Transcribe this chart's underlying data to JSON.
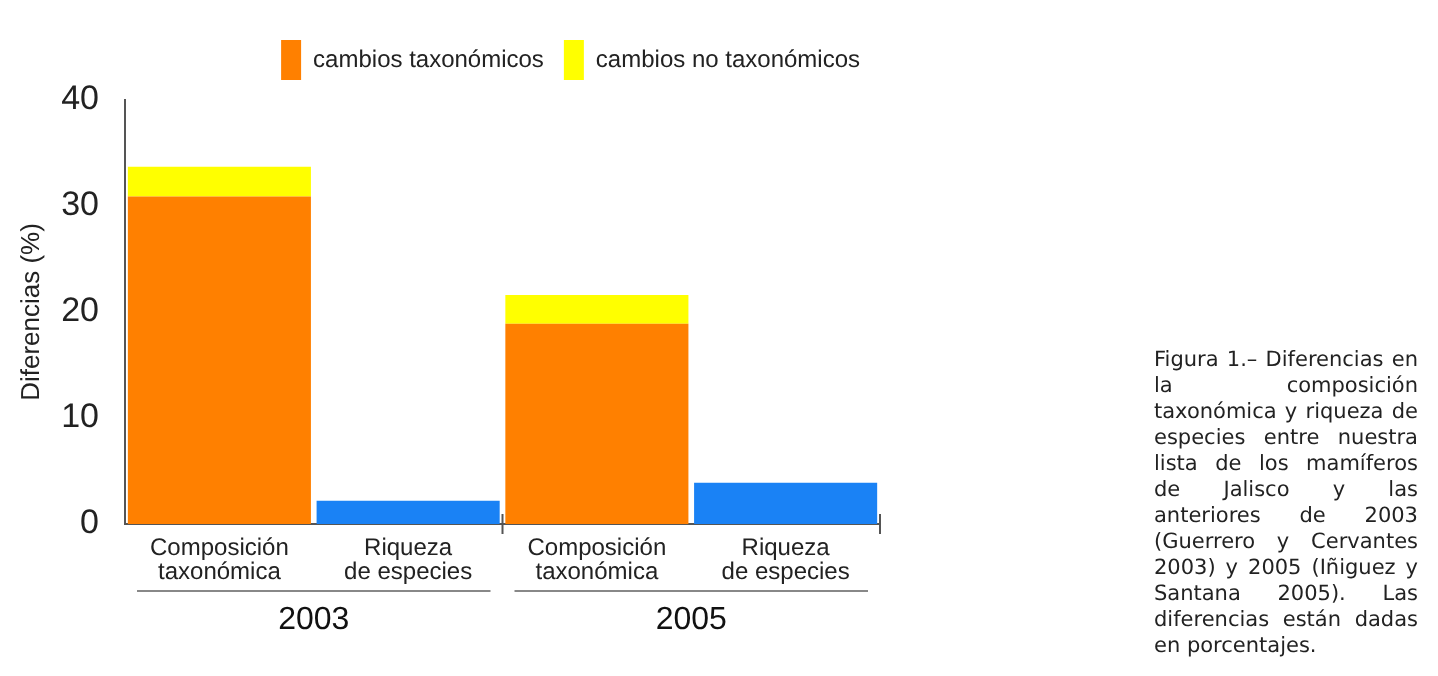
{
  "chart_data": {
    "type": "bar",
    "ylabel": "Diferencias (%)",
    "categories": [
      "Composición taxonómica",
      "Riqueza de especies",
      "Composición taxonómica",
      "Riqueza de especies"
    ],
    "series": [
      {
        "name": "cambios taxonómicos",
        "color": "#ff8000",
        "values": [
          30.9,
          null,
          18.9,
          null
        ]
      },
      {
        "name": "cambios no taxonómicos",
        "color": "#ffff00",
        "values": [
          2.8,
          null,
          2.7,
          null
        ]
      },
      {
        "color": "#1a82f5",
        "values": [
          null,
          2.2,
          null,
          3.9
        ]
      }
    ],
    "stacked": true,
    "ylim": [
      0,
      40
    ],
    "yticks": [
      0,
      10,
      20,
      30,
      40
    ],
    "grid": false,
    "legend": "top right",
    "annotations": [
      "2003",
      "2005",
      "Figura 1.– Diferencias en la composición taxonómica y riqueza de especies entre nuestra lista de los mamíferos de Jalisco y las anteriores de 2003 (Guerrero y Cervantes 2003) y 2005 (Iñiguez y Santana 2005). Las diferencias están dadas en porcentajes."
    ]
  }
}
